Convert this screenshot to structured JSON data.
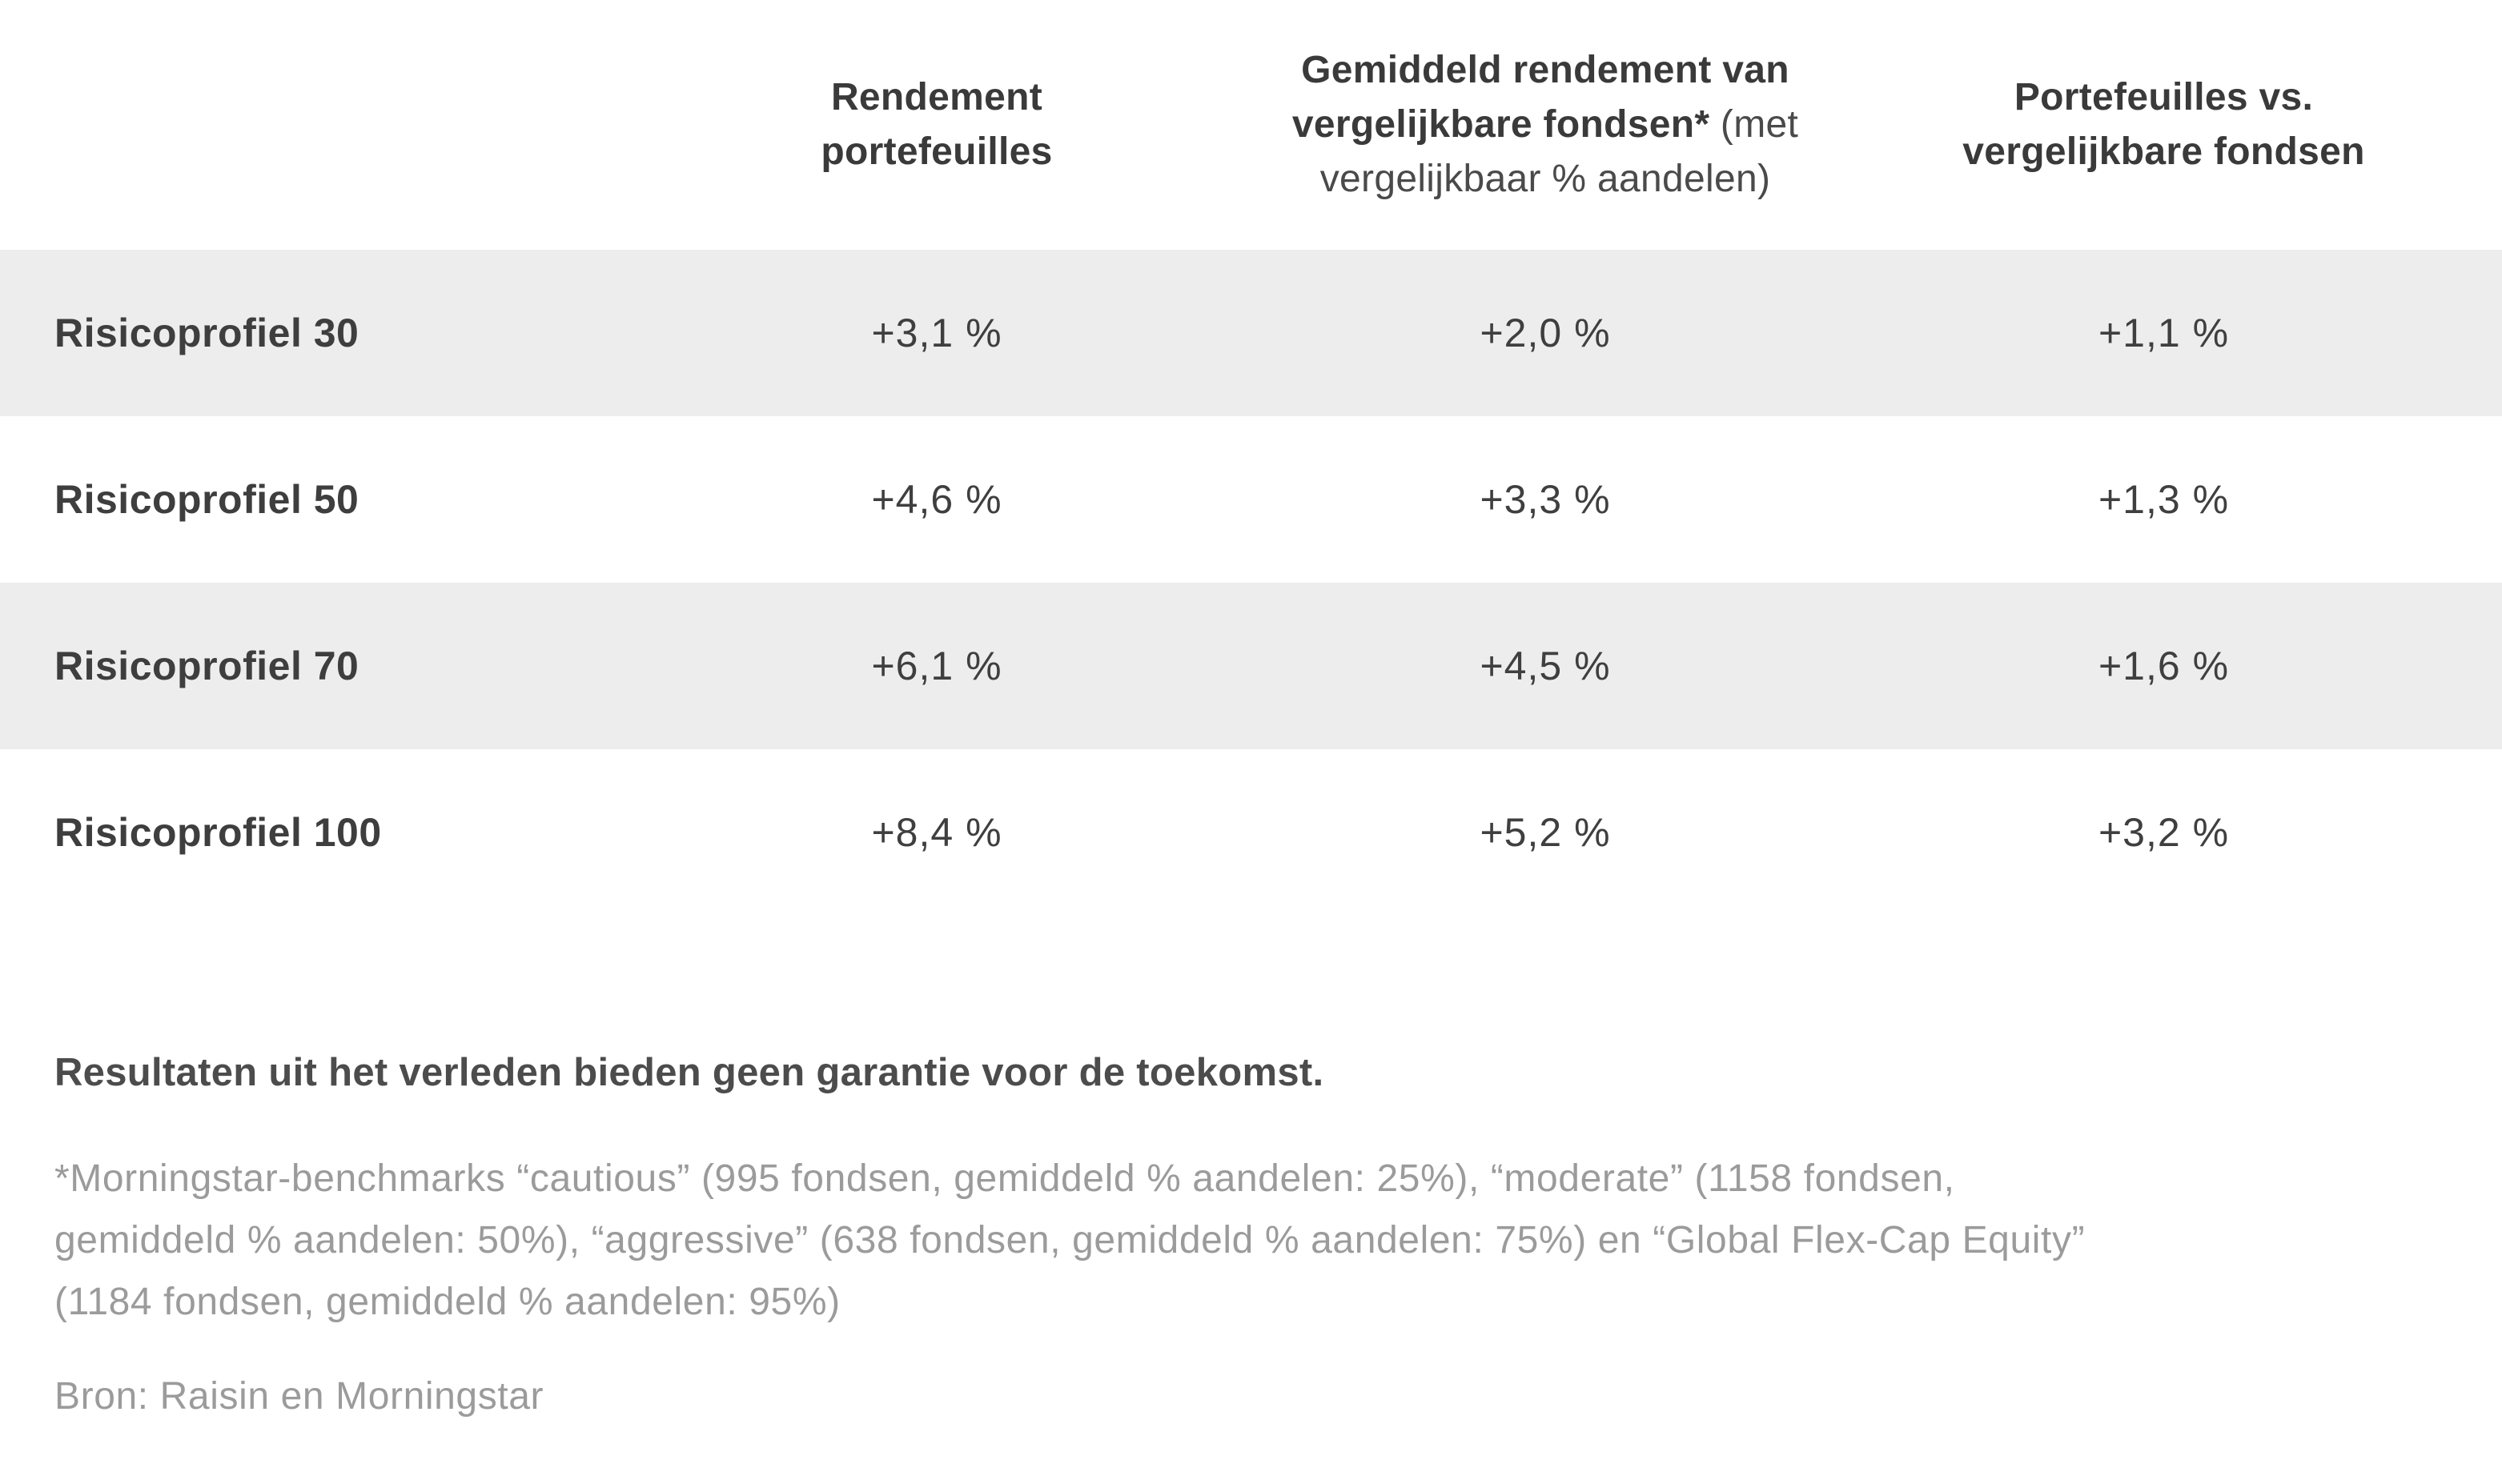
{
  "colors": {
    "background": "#ffffff",
    "row_stripe": "#ededed",
    "text_dark": "#3e3e3e",
    "text_muted": "#9b9b9b"
  },
  "table": {
    "columns": [
      {
        "bold": "Rendement portefeuilles",
        "regular": ""
      },
      {
        "bold": "Gemiddeld rendement van vergelijkbare fondsen*",
        "regular": " (met vergelijkbaar % aandelen)"
      },
      {
        "bold": "Portefeuilles vs. vergelijkbare fondsen",
        "regular": ""
      }
    ],
    "rows": [
      {
        "label": "Risicoprofiel 30",
        "values": [
          "+3,1 %",
          "+2,0 %",
          "+1,1 %"
        ]
      },
      {
        "label": "Risicoprofiel 50",
        "values": [
          "+4,6 %",
          "+3,3 %",
          "+1,3 %"
        ]
      },
      {
        "label": "Risicoprofiel 70",
        "values": [
          "+6,1 %",
          "+4,5 %",
          "+1,6 %"
        ]
      },
      {
        "label": "Risicoprofiel 100",
        "values": [
          "+8,4 %",
          "+5,2 %",
          "+3,2 %"
        ]
      }
    ]
  },
  "footer": {
    "disclaimer": "Resultaten uit het verleden bieden geen garantie voor de toekomst.",
    "footnote_lines": [
      "*Morningstar-benchmarks “cautious” (995 fondsen, gemiddeld % aandelen: 25%), “moderate” (1158 fondsen,",
      "gemiddeld % aandelen: 50%), “aggressive” (638 fondsen, gemiddeld % aandelen: 75%) en “Global Flex-Cap Equity”",
      "(1184 fondsen, gemiddeld % aandelen: 95%)"
    ],
    "source": "Bron: Raisin en Morningstar"
  },
  "chart_data": {
    "type": "table",
    "title": "",
    "categories": [
      "Risicoprofiel 30",
      "Risicoprofiel 50",
      "Risicoprofiel 70",
      "Risicoprofiel 100"
    ],
    "series": [
      {
        "name": "Rendement portefeuilles",
        "values": [
          3.1,
          4.6,
          6.1,
          8.4
        ],
        "unit": "%"
      },
      {
        "name": "Gemiddeld rendement van vergelijkbare fondsen* (met vergelijkbaar % aandelen)",
        "values": [
          2.0,
          3.3,
          4.5,
          5.2
        ],
        "unit": "%"
      },
      {
        "name": "Portefeuilles vs. vergelijkbare fondsen",
        "values": [
          1.1,
          1.3,
          1.6,
          3.2
        ],
        "unit": "%"
      }
    ],
    "notes": "Values displayed with Dutch decimal commas and leading plus signs, e.g. +3,1 %"
  }
}
